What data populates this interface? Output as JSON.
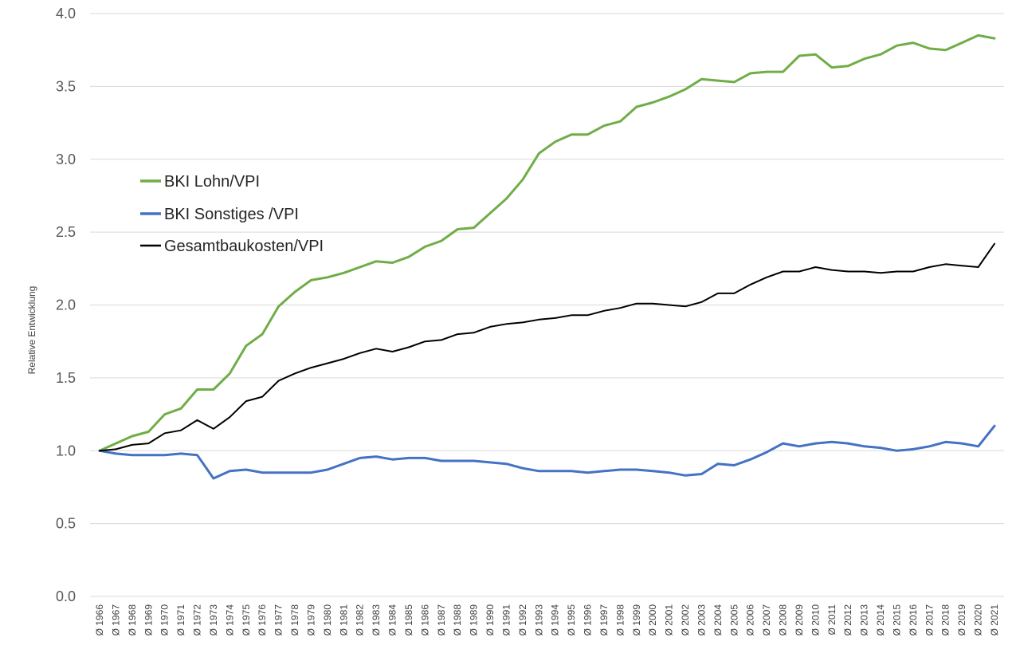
{
  "chart_data": {
    "type": "line",
    "title": "",
    "xlabel": "",
    "ylabel": "Relative Entwicklung",
    "ylim": [
      0,
      4
    ],
    "yticks": [
      "0.0",
      "0.5",
      "1.0",
      "1.5",
      "2.0",
      "2.5",
      "3.0",
      "3.5",
      "4.0"
    ],
    "ytick_values": [
      0,
      0.5,
      1,
      1.5,
      2,
      2.5,
      3,
      3.5,
      4
    ],
    "grid": true,
    "legend_position": "upper-left",
    "categories": [
      "Ø 1966",
      "Ø 1967",
      "Ø 1968",
      "Ø 1969",
      "Ø 1970",
      "Ø 1971",
      "Ø 1972",
      "Ø 1973",
      "Ø 1974",
      "Ø 1975",
      "Ø 1976",
      "Ø 1977",
      "Ø 1978",
      "Ø 1979",
      "Ø 1980",
      "Ø 1981",
      "Ø 1982",
      "Ø 1983",
      "Ø 1984",
      "Ø 1985",
      "Ø 1986",
      "Ø 1987",
      "Ø 1988",
      "Ø 1989",
      "Ø 1990",
      "Ø 1991",
      "Ø 1992",
      "Ø 1993",
      "Ø 1994",
      "Ø 1995",
      "Ø 1996",
      "Ø 1997",
      "Ø 1998",
      "Ø 1999",
      "Ø 2000",
      "Ø 2001",
      "Ø 2002",
      "Ø 2003",
      "Ø 2004",
      "Ø 2005",
      "Ø 2006",
      "Ø 2007",
      "Ø 2008",
      "Ø 2009",
      "Ø 2010",
      "Ø 2011",
      "Ø 2012",
      "Ø 2013",
      "Ø 2014",
      "Ø 2015",
      "Ø 2016",
      "Ø 2017",
      "Ø 2018",
      "Ø 2019",
      "Ø 2020",
      "Ø 2021"
    ],
    "series": [
      {
        "name": "BKI Lohn/VPI",
        "color": "#70ad47",
        "width": 3,
        "values": [
          1.0,
          1.05,
          1.1,
          1.13,
          1.25,
          1.29,
          1.42,
          1.42,
          1.53,
          1.72,
          1.8,
          1.99,
          2.09,
          2.17,
          2.19,
          2.22,
          2.26,
          2.3,
          2.29,
          2.33,
          2.4,
          2.44,
          2.52,
          2.53,
          2.63,
          2.73,
          2.86,
          3.04,
          3.12,
          3.17,
          3.17,
          3.23,
          3.26,
          3.36,
          3.39,
          3.43,
          3.48,
          3.55,
          3.54,
          3.53,
          3.59,
          3.6,
          3.6,
          3.71,
          3.72,
          3.63,
          3.64,
          3.69,
          3.72,
          3.78,
          3.8,
          3.76,
          3.75,
          3.8,
          3.85,
          3.83
        ]
      },
      {
        "name": "BKI Sonstiges /VPI",
        "color": "#4472c4",
        "width": 3,
        "values": [
          1.0,
          0.98,
          0.97,
          0.97,
          0.97,
          0.98,
          0.97,
          0.81,
          0.86,
          0.87,
          0.85,
          0.85,
          0.85,
          0.85,
          0.87,
          0.91,
          0.95,
          0.96,
          0.94,
          0.95,
          0.95,
          0.93,
          0.93,
          0.93,
          0.92,
          0.91,
          0.88,
          0.86,
          0.86,
          0.86,
          0.85,
          0.86,
          0.87,
          0.87,
          0.86,
          0.85,
          0.83,
          0.84,
          0.91,
          0.9,
          0.94,
          0.99,
          1.05,
          1.03,
          1.05,
          1.06,
          1.05,
          1.03,
          1.02,
          1.0,
          1.01,
          1.03,
          1.06,
          1.05,
          1.03,
          1.17
        ]
      },
      {
        "name": "Gesamtbaukosten/VPI",
        "color": "#000000",
        "width": 2,
        "values": [
          1.0,
          1.01,
          1.04,
          1.05,
          1.12,
          1.14,
          1.21,
          1.15,
          1.23,
          1.34,
          1.37,
          1.48,
          1.53,
          1.57,
          1.6,
          1.63,
          1.67,
          1.7,
          1.68,
          1.71,
          1.75,
          1.76,
          1.8,
          1.81,
          1.85,
          1.87,
          1.88,
          1.9,
          1.91,
          1.93,
          1.93,
          1.96,
          1.98,
          2.01,
          2.01,
          2.0,
          1.99,
          2.02,
          2.08,
          2.08,
          2.14,
          2.19,
          2.23,
          2.23,
          2.26,
          2.24,
          2.23,
          2.23,
          2.22,
          2.23,
          2.23,
          2.26,
          2.28,
          2.27,
          2.26,
          2.42
        ]
      }
    ]
  }
}
